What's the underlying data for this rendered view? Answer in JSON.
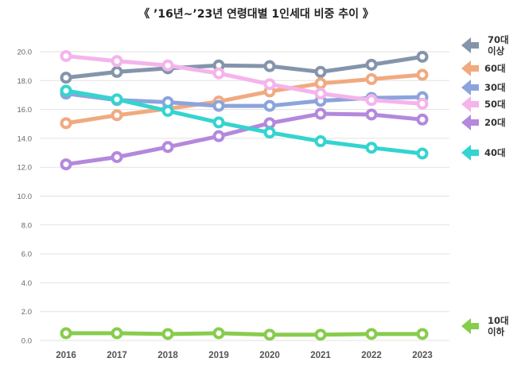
{
  "chart_data": {
    "type": "line",
    "title": "《 ’16년~’23년 연령대별 1인세대 비중 추이 》",
    "xlabel": "",
    "ylabel": "",
    "categories": [
      "2016",
      "2017",
      "2018",
      "2019",
      "2020",
      "2021",
      "2022",
      "2023"
    ],
    "ylim": [
      0,
      20
    ],
    "yticks": [
      "0.0",
      "2.0",
      "4.0",
      "6.0",
      "8.0",
      "10.0",
      "12.0",
      "14.0",
      "16.0",
      "18.0",
      "20.0"
    ],
    "grid": true,
    "legend_position": "right",
    "series": [
      {
        "name": "70대 이상",
        "label_lines": [
          "70대",
          "이상"
        ],
        "color": "#8494ab",
        "values": [
          18.2,
          18.6,
          18.85,
          19.05,
          19.0,
          18.6,
          19.1,
          19.65
        ]
      },
      {
        "name": "60대",
        "label_lines": [
          "60대"
        ],
        "color": "#f0aa80",
        "values": [
          15.05,
          15.6,
          16.05,
          16.55,
          17.25,
          17.8,
          18.1,
          18.4
        ]
      },
      {
        "name": "30대",
        "label_lines": [
          "30대"
        ],
        "color": "#8ca4dc",
        "values": [
          17.1,
          16.65,
          16.5,
          16.25,
          16.25,
          16.6,
          16.8,
          16.85
        ]
      },
      {
        "name": "50대",
        "label_lines": [
          "50대"
        ],
        "color": "#f4b4ec",
        "values": [
          19.7,
          19.35,
          19.05,
          18.5,
          17.75,
          17.1,
          16.65,
          16.4
        ]
      },
      {
        "name": "20대",
        "label_lines": [
          "20대"
        ],
        "color": "#b488dc",
        "values": [
          12.2,
          12.7,
          13.4,
          14.15,
          15.05,
          15.7,
          15.65,
          15.3
        ]
      },
      {
        "name": "40대",
        "label_lines": [
          "40대"
        ],
        "color": "#34d4d0",
        "values": [
          17.3,
          16.7,
          15.9,
          15.1,
          14.4,
          13.8,
          13.35,
          12.95
        ]
      },
      {
        "name": "10대 이하",
        "label_lines": [
          "10대",
          "이하"
        ],
        "color": "#88cc4c",
        "values": [
          0.5,
          0.5,
          0.45,
          0.5,
          0.4,
          0.4,
          0.45,
          0.45
        ]
      }
    ]
  }
}
